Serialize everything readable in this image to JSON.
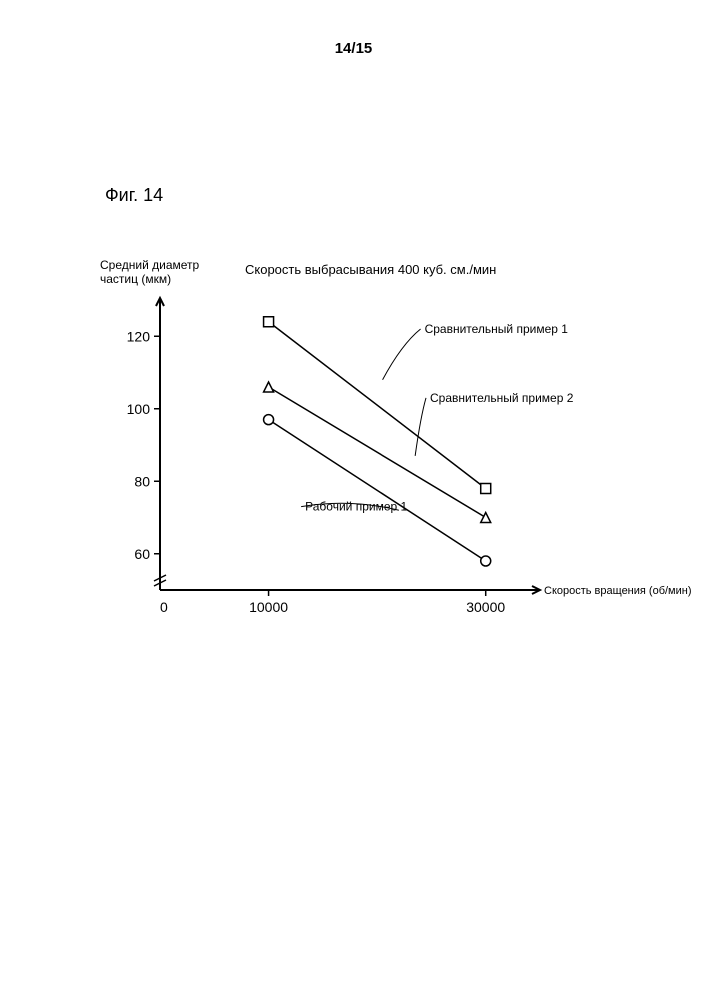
{
  "page_number": "14/15",
  "figure_title": "Фиг. 14",
  "chart": {
    "type": "line-scatter",
    "y_axis_label_line1": "Средний диаметр",
    "y_axis_label_line2": "частиц (мкм)",
    "subtitle": "Скорость выбрасывания 400 куб. см./мин",
    "x_axis_label": "Скорость вращения (об/мин)",
    "x_ticks": [
      0,
      10000,
      30000
    ],
    "y_ticks": [
      60,
      80,
      100,
      120
    ],
    "xlim": [
      0,
      35000
    ],
    "ylim": [
      50,
      130
    ],
    "axis_color": "#000000",
    "axis_width": 2,
    "tick_fontsize": 14,
    "label_fontsize": 12,
    "series": [
      {
        "name": "Сравнительный пример 1",
        "marker": "square",
        "color": "#000000",
        "line_width": 1.5,
        "points": [
          {
            "x": 10000,
            "y": 124
          },
          {
            "x": 30000,
            "y": 78
          }
        ],
        "label_anchor": {
          "x": 20500,
          "y": 108
        },
        "label_pos": {
          "x": 24000,
          "y": 122
        }
      },
      {
        "name": "Сравнительный пример 2",
        "marker": "triangle",
        "color": "#000000",
        "line_width": 1.5,
        "points": [
          {
            "x": 10000,
            "y": 106
          },
          {
            "x": 30000,
            "y": 70
          }
        ],
        "label_anchor": {
          "x": 23500,
          "y": 87
        },
        "label_pos": {
          "x": 24500,
          "y": 103
        }
      },
      {
        "name": "Рабочий пример 1",
        "marker": "circle",
        "color": "#000000",
        "line_width": 1.5,
        "points": [
          {
            "x": 10000,
            "y": 97
          },
          {
            "x": 30000,
            "y": 58
          }
        ],
        "label_anchor": {
          "x": 22000,
          "y": 72
        },
        "label_pos": {
          "x": 13000,
          "y": 73
        }
      }
    ],
    "axis_break": true,
    "background_color": "#ffffff"
  }
}
